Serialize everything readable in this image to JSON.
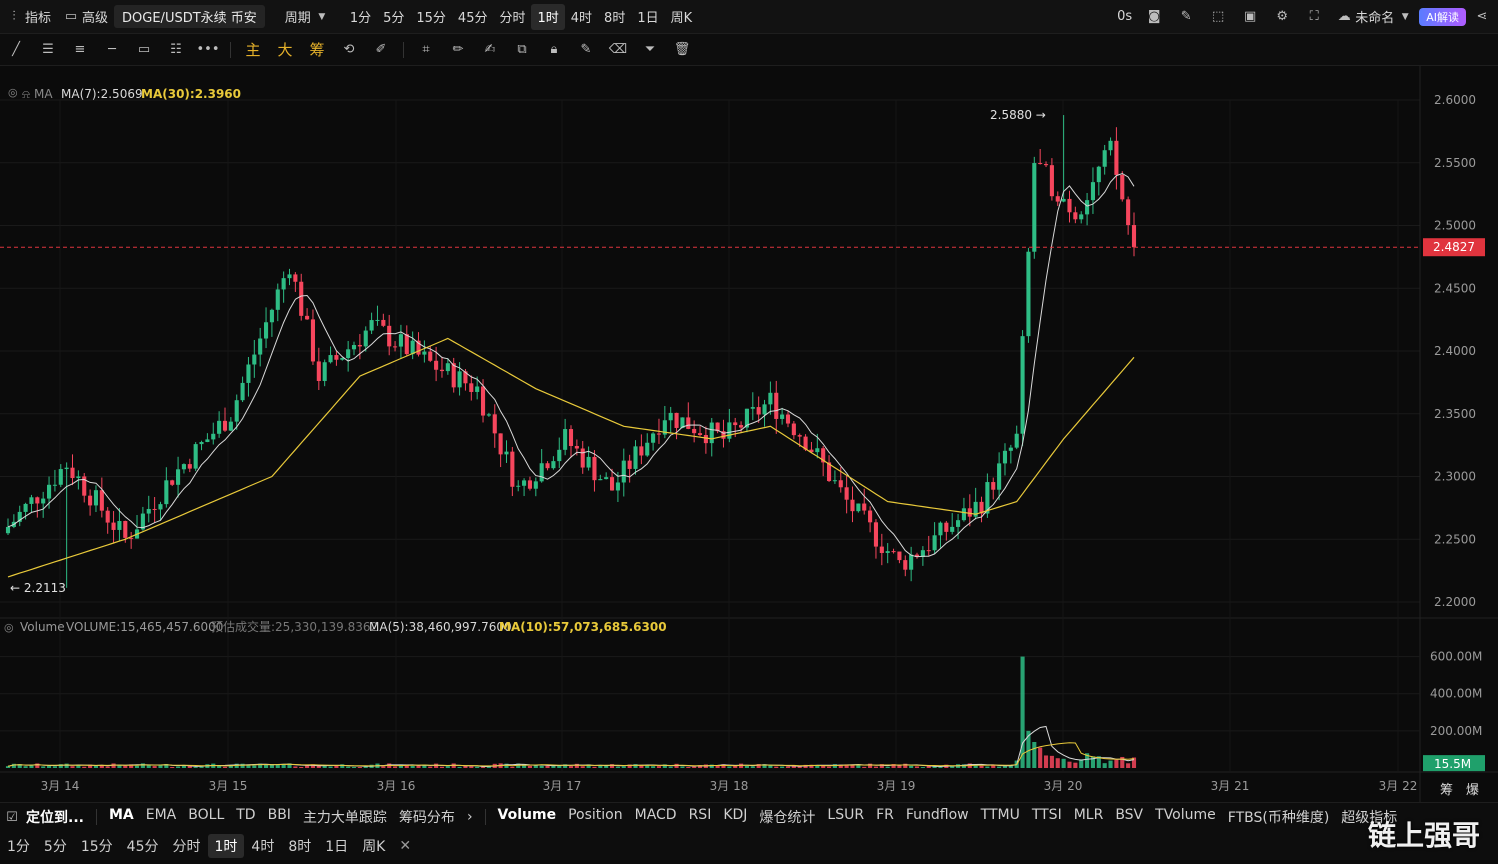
{
  "topbar": {
    "indicators": "指标",
    "advanced": "高级",
    "symbol": "DOGE/USDT永续 币安",
    "period": "周期",
    "intervals": [
      "1分",
      "5分",
      "15分",
      "45分",
      "分时",
      "1时",
      "4时",
      "8时",
      "1日",
      "周K"
    ],
    "active_interval": "1时",
    "countdown": "0s",
    "layout_name": "未命名",
    "ai_label": "AI解读"
  },
  "toolbar": {
    "text_tools": [
      "主",
      "大",
      "筹"
    ]
  },
  "legend": {
    "ma_title": "MA",
    "ma7": "MA(7):2.5069",
    "ma30": "MA(30):2.3960",
    "vol_title": "Volume",
    "vol_value": "VOLUME:15,465,457.6000",
    "vol_est": "预估成交量:25,330,139.8362",
    "vol_ma5": "MA(5):38,460,997.7600",
    "vol_ma10": "MA(10):57,073,685.6300"
  },
  "chart_data": {
    "type": "candlestick",
    "price_ticks": [
      "2.6000",
      "2.5500",
      "2.5000",
      "2.4500",
      "2.4000",
      "2.3500",
      "2.3000",
      "2.2500",
      "2.2000"
    ],
    "price_range": [
      2.2,
      2.6
    ],
    "current_price": "2.4827",
    "high_label": "2.5880",
    "low_label": "2.2113",
    "volume_ticks": [
      "600.00M",
      "400.00M",
      "200.00M"
    ],
    "volume_current": "15.5M",
    "date_ticks": [
      "3月 14",
      "3月 15",
      "3月 16",
      "3月 17",
      "3月 18",
      "3月 19",
      "3月 20",
      "3月 21",
      "3月 22"
    ],
    "close_keypoints": [
      [
        0,
        2.26
      ],
      [
        10,
        2.31
      ],
      [
        20,
        2.25
      ],
      [
        28,
        2.3
      ],
      [
        38,
        2.35
      ],
      [
        48,
        2.47
      ],
      [
        53,
        2.38
      ],
      [
        62,
        2.42
      ],
      [
        72,
        2.39
      ],
      [
        80,
        2.37
      ],
      [
        87,
        2.29
      ],
      [
        95,
        2.33
      ],
      [
        103,
        2.29
      ],
      [
        112,
        2.35
      ],
      [
        122,
        2.33
      ],
      [
        130,
        2.36
      ],
      [
        136,
        2.33
      ],
      [
        143,
        2.28
      ],
      [
        152,
        2.23
      ],
      [
        158,
        2.25
      ],
      [
        166,
        2.28
      ],
      [
        172,
        2.33
      ],
      [
        175,
        2.55
      ],
      [
        182,
        2.51
      ],
      [
        188,
        2.56
      ],
      [
        192,
        2.48
      ]
    ],
    "ma30_keypoints": [
      [
        0,
        2.22
      ],
      [
        20,
        2.25
      ],
      [
        45,
        2.3
      ],
      [
        60,
        2.38
      ],
      [
        75,
        2.41
      ],
      [
        90,
        2.37
      ],
      [
        105,
        2.34
      ],
      [
        120,
        2.33
      ],
      [
        130,
        2.34
      ],
      [
        140,
        2.31
      ],
      [
        150,
        2.28
      ],
      [
        165,
        2.27
      ],
      [
        172,
        2.28
      ],
      [
        180,
        2.33
      ],
      [
        192,
        2.395
      ]
    ]
  },
  "bottombar": {
    "locate": "定位到...",
    "main_indicators": [
      "MA",
      "EMA",
      "BOLL",
      "TD",
      "BBI",
      "主力大单跟踪",
      "筹码分布"
    ],
    "active_main": "MA",
    "sub_indicators": [
      "Volume",
      "Position",
      "MACD",
      "RSI",
      "KDJ",
      "爆仓统计",
      "LSUR",
      "FR",
      "Fundflow",
      "TTMU",
      "TTSI",
      "MLR",
      "BSV",
      "TVolume",
      "FTBS(币种维度)",
      "超级指标"
    ],
    "active_sub": "Volume",
    "right_labels": [
      "筹",
      "爆"
    ],
    "intervals": [
      "1分",
      "5分",
      "15分",
      "45分",
      "分时",
      "1时",
      "4时",
      "8时",
      "1日",
      "周K"
    ],
    "active_interval": "1时"
  },
  "watermark": "链上强哥",
  "colors": {
    "up": "#2ebd85",
    "down": "#f6465d",
    "ma7": "#d9d9d9",
    "ma30": "#e8c93a",
    "bg": "#0b0b0b",
    "last": "#e0343e"
  }
}
